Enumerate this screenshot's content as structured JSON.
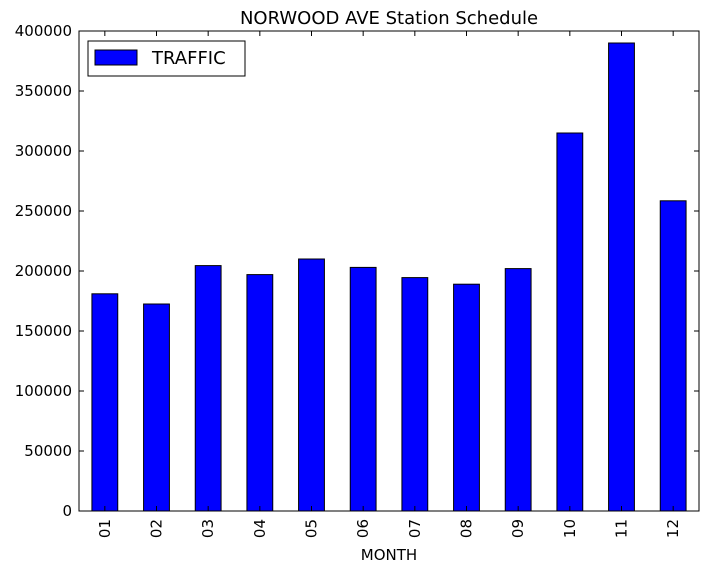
{
  "chart_data": {
    "type": "bar",
    "title": "NORWOOD AVE Station Schedule",
    "xlabel": "MONTH",
    "ylabel": "",
    "categories": [
      "01",
      "02",
      "03",
      "04",
      "05",
      "06",
      "07",
      "08",
      "09",
      "10",
      "11",
      "12"
    ],
    "series": [
      {
        "name": "TRAFFIC",
        "color": "#0000ff",
        "values": [
          181000,
          172500,
          204500,
          197000,
          210000,
          203000,
          194500,
          189000,
          202000,
          315000,
          390000,
          258500
        ]
      }
    ],
    "ylim": [
      0,
      400000
    ],
    "yticks": [
      "0",
      "50000",
      "100000",
      "150000",
      "200000",
      "250000",
      "300000",
      "350000",
      "400000"
    ],
    "yticks_values": [
      0,
      50000,
      100000,
      150000,
      200000,
      250000,
      300000,
      350000,
      400000
    ],
    "legend_position": "top-left",
    "grid": false
  }
}
